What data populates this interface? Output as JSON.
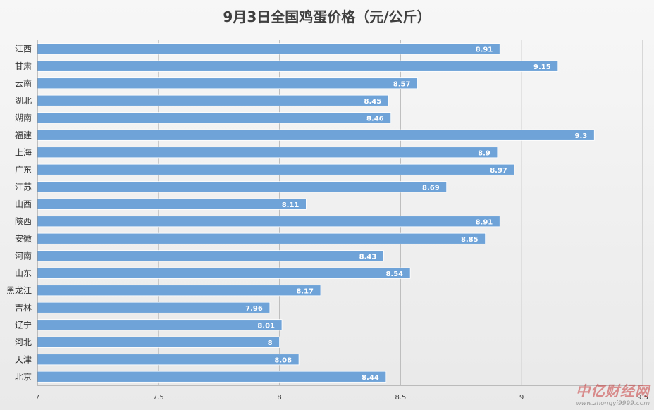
{
  "chart_data": {
    "type": "bar",
    "orientation": "horizontal",
    "title": "9月3日全国鸡蛋价格（元/公斤）",
    "categories": [
      "江西",
      "甘肃",
      "云南",
      "湖北",
      "湖南",
      "福建",
      "上海",
      "广东",
      "江苏",
      "山西",
      "陕西",
      "安徽",
      "河南",
      "山东",
      "黑龙江",
      "吉林",
      "辽宁",
      "河北",
      "天津",
      "北京"
    ],
    "values": [
      8.91,
      9.15,
      8.57,
      8.45,
      8.46,
      9.3,
      8.9,
      8.97,
      8.69,
      8.11,
      8.91,
      8.85,
      8.43,
      8.54,
      8.17,
      7.96,
      8.01,
      8,
      8.08,
      8.44
    ],
    "value_labels": [
      "8.91",
      "9.15",
      "8.57",
      "8.45",
      "8.46",
      "9.3",
      "8.9",
      "8.97",
      "8.69",
      "8.11",
      "8.91",
      "8.85",
      "8.43",
      "8.54",
      "8.17",
      "7.96",
      "8.01",
      "8",
      "8.08",
      "8.44"
    ],
    "xlim": [
      7,
      9.5
    ],
    "ticks": [
      "7",
      "7.5",
      "8",
      "8.5",
      "9",
      "9.5"
    ],
    "grid": true,
    "bar_color": "#6fa3d8"
  },
  "watermark": {
    "brand": "中亿财经网",
    "url": "www.zhongyi9999.com"
  }
}
